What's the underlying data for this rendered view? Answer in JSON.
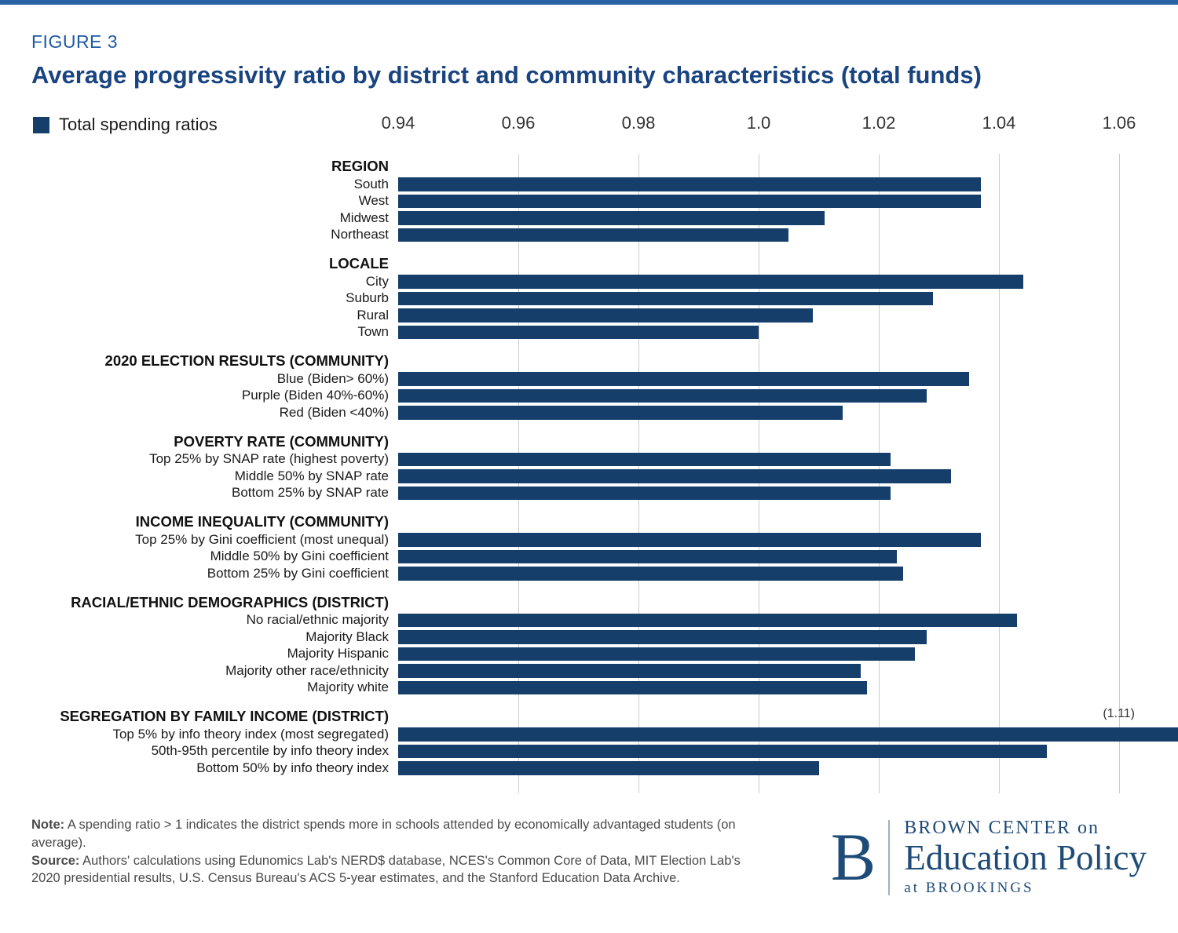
{
  "page": {
    "figure_label": "FIGURE 3",
    "title": "Average progressivity ratio by district and community characteristics (total funds)",
    "legend_label": "Total spending ratios"
  },
  "chart_data": {
    "type": "bar",
    "orientation": "horizontal",
    "series_name": "Total spending ratios",
    "bar_color": "#153e6b",
    "axis": {
      "min": 0.94,
      "max": 1.06,
      "ticks": [
        0.94,
        0.96,
        0.98,
        1.0,
        1.02,
        1.04,
        1.06
      ],
      "tick_labels": [
        "0.94",
        "0.96",
        "0.98",
        "1.0",
        "1.02",
        "1.04",
        "1.06"
      ],
      "grid": true
    },
    "groups": [
      {
        "header": "REGION",
        "bars": [
          {
            "label": "South",
            "value": 1.037
          },
          {
            "label": "West",
            "value": 1.037
          },
          {
            "label": "Midwest",
            "value": 1.011
          },
          {
            "label": "Northeast",
            "value": 1.005
          }
        ]
      },
      {
        "header": "LOCALE",
        "bars": [
          {
            "label": "City",
            "value": 1.044
          },
          {
            "label": "Suburb",
            "value": 1.029
          },
          {
            "label": "Rural",
            "value": 1.009
          },
          {
            "label": "Town",
            "value": 1.0
          }
        ]
      },
      {
        "header": "2020 ELECTION RESULTS (COMMUNITY)",
        "bars": [
          {
            "label": "Blue (Biden> 60%)",
            "value": 1.035
          },
          {
            "label": "Purple (Biden 40%-60%)",
            "value": 1.028
          },
          {
            "label": "Red (Biden <40%)",
            "value": 1.014
          }
        ]
      },
      {
        "header": "POVERTY RATE (COMMUNITY)",
        "bars": [
          {
            "label": "Top 25% by SNAP rate (highest poverty)",
            "value": 1.022
          },
          {
            "label": "Middle 50% by SNAP rate",
            "value": 1.032
          },
          {
            "label": "Bottom 25% by SNAP rate",
            "value": 1.022
          }
        ]
      },
      {
        "header": "INCOME INEQUALITY (COMMUNITY)",
        "bars": [
          {
            "label": "Top 25% by Gini coefficient (most unequal)",
            "value": 1.037
          },
          {
            "label": "Middle 50% by Gini coefficient",
            "value": 1.023
          },
          {
            "label": "Bottom 25% by Gini coefficient",
            "value": 1.024
          }
        ]
      },
      {
        "header": "RACIAL/ETHNIC DEMOGRAPHICS (DISTRICT)",
        "bars": [
          {
            "label": "No racial/ethnic majority",
            "value": 1.043
          },
          {
            "label": "Majority Black",
            "value": 1.028
          },
          {
            "label": "Majority Hispanic",
            "value": 1.026
          },
          {
            "label": "Majority other race/ethnicity",
            "value": 1.017
          },
          {
            "label": "Majority white",
            "value": 1.018
          }
        ]
      },
      {
        "header": "SEGREGATION BY FAMILY INCOME (DISTRICT)",
        "annotation": {
          "text": "(1.11)"
        },
        "bars": [
          {
            "label": "Top 5% by info theory index (most segregated)",
            "value": 1.11
          },
          {
            "label": "50th-95th percentile by info theory index",
            "value": 1.048
          },
          {
            "label": "Bottom 50% by info theory index",
            "value": 1.01
          }
        ]
      }
    ]
  },
  "footer": {
    "note_label": "Note:",
    "note_text": " A spending ratio > 1 indicates the district spends more in schools attended by economically advantaged students (on average).",
    "source_label": "Source:",
    "source_text": " Authors' calculations using Edunomics Lab's NERD$ database, NCES's Common Core of Data, MIT Election Lab's 2020 presidential results, U.S. Census Bureau's ACS 5-year estimates, and the Stanford Education Data Archive."
  },
  "logo": {
    "letter": "B",
    "line1": "BROWN CENTER on",
    "line2": "Education Policy",
    "line3": "at BROOKINGS"
  }
}
